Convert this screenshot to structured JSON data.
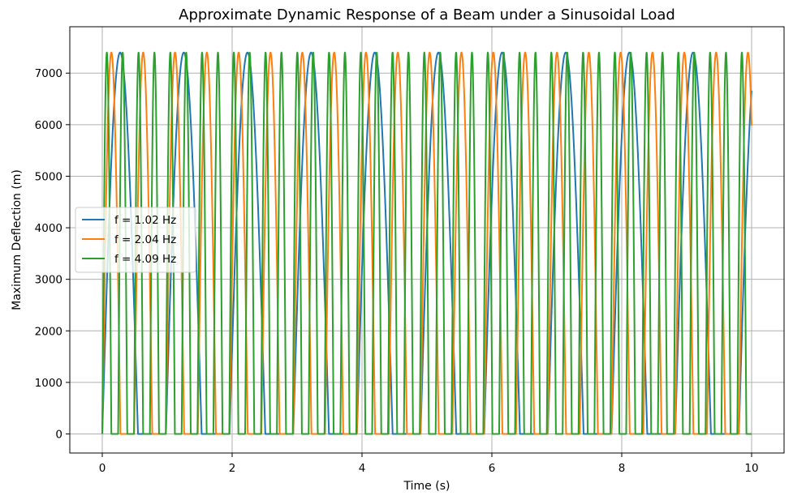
{
  "chart_data": {
    "type": "line",
    "title": "Approximate Dynamic Response of a Beam under a Sinusoidal Load",
    "xlabel": "Time (s)",
    "ylabel": "Maximum Deflection (m)",
    "xlim": [
      -0.5,
      10.5
    ],
    "ylim": [
      -370,
      7900
    ],
    "xticks": [
      0,
      2,
      4,
      6,
      8,
      10
    ],
    "yticks": [
      0,
      1000,
      2000,
      3000,
      4000,
      5000,
      6000,
      7000
    ],
    "grid": true,
    "legend_position": "center-left",
    "series": [
      {
        "name": "f = 1.02 Hz",
        "color": "#1f77b4",
        "frequency_hz": 1.02,
        "peak": 7400,
        "pulse_width_s": 0.55,
        "t_start": 0,
        "t_end": 10
      },
      {
        "name": "f = 2.04 Hz",
        "color": "#ff7f0e",
        "frequency_hz": 2.04,
        "peak": 7400,
        "pulse_width_s": 0.28,
        "t_start": 0,
        "t_end": 10
      },
      {
        "name": "f = 4.09 Hz",
        "color": "#2ca02c",
        "frequency_hz": 4.09,
        "peak": 7400,
        "pulse_width_s": 0.14,
        "t_start": 0,
        "t_end": 10
      }
    ]
  }
}
